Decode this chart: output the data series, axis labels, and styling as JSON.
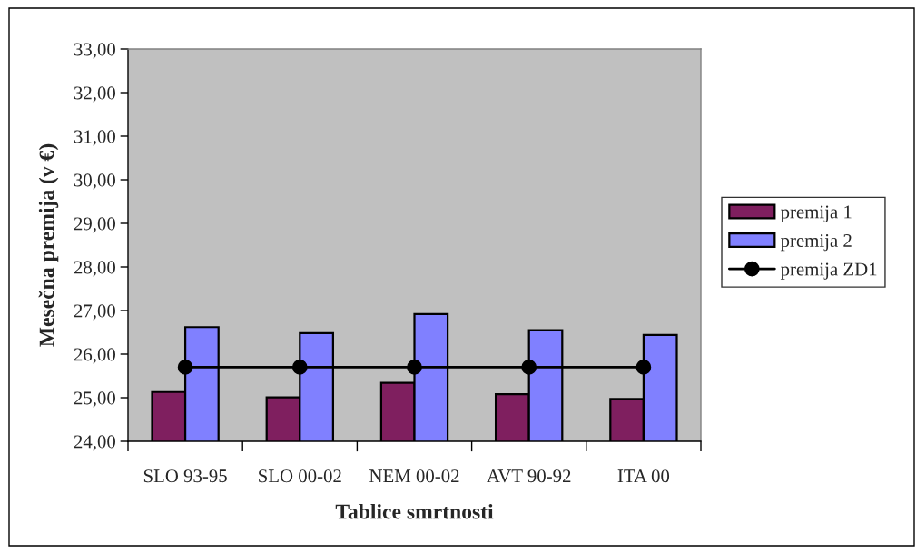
{
  "chart_data": {
    "type": "bar",
    "xlabel": "Tablice smrtnosti",
    "ylabel": "Mesečna premija (v €)",
    "categories": [
      "SLO 93-95",
      "SLO 00-02",
      "NEM 00-02",
      "AVT 90-92",
      "ITA 00"
    ],
    "series": [
      {
        "name": "premija 1",
        "color": "#7f1f5f",
        "values": [
          25.13,
          25.01,
          25.34,
          25.08,
          24.97
        ]
      },
      {
        "name": "premija 2",
        "color": "#8080ff",
        "values": [
          26.62,
          26.48,
          26.92,
          26.55,
          26.44
        ]
      },
      {
        "name": "premija ZD1",
        "type": "line",
        "color": "#000000",
        "marker": "circle",
        "line_style": "solid",
        "values": [
          25.7,
          25.7,
          25.7,
          25.7,
          25.7
        ]
      }
    ],
    "ylim": [
      24,
      33
    ],
    "yticks": [
      {
        "value": 24,
        "label": "24,00"
      },
      {
        "value": 25,
        "label": "25,00"
      },
      {
        "value": 26,
        "label": "26,00"
      },
      {
        "value": 27,
        "label": "27,00"
      },
      {
        "value": 28,
        "label": "28,00"
      },
      {
        "value": 29,
        "label": "29,00"
      },
      {
        "value": 30,
        "label": "30,00"
      },
      {
        "value": 31,
        "label": "31,00"
      },
      {
        "value": 32,
        "label": "32,00"
      },
      {
        "value": 33,
        "label": "33,00"
      }
    ],
    "grid": false,
    "legend": "right"
  }
}
